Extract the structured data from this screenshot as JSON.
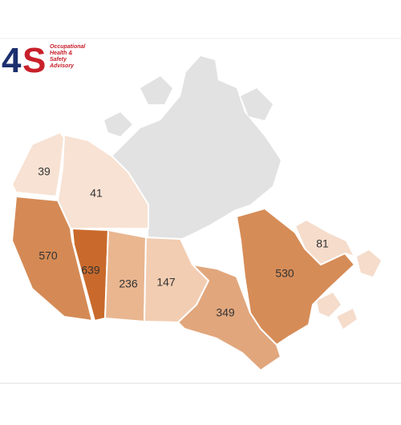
{
  "logo": {
    "mark": [
      "4",
      "S"
    ],
    "text": [
      "Occupational",
      "Health &",
      "Safety",
      "Advisory"
    ]
  },
  "chart_data": {
    "type": "choropleth",
    "values": [
      39,
      41,
      570,
      639,
      236,
      147,
      349,
      530,
      81
    ],
    "colors": [
      "#f7e2d3",
      "#f7e2d3",
      "#d58a55",
      "#c96a2c",
      "#e9b690",
      "#f2cdb2",
      "#e1a67c",
      "#d68c57",
      "#f5dccb"
    ]
  }
}
